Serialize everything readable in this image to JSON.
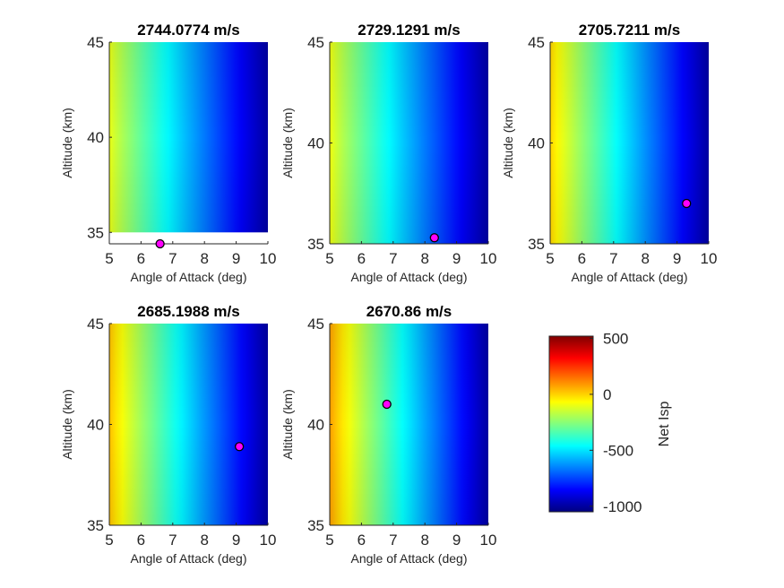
{
  "colorbar": {
    "label": "Net Isp",
    "ticks": [
      500,
      0,
      -500,
      -1000
    ],
    "range": [
      -1050,
      520
    ]
  },
  "chart_data": [
    {
      "type": "heatmap",
      "title": "2744.0774 m/s",
      "xlabel": "Angle of Attack (deg)",
      "ylabel": "Altitude (km)",
      "xlim": [
        5,
        10
      ],
      "ylim": [
        34.4,
        45
      ],
      "xticks": [
        5,
        6,
        7,
        8,
        9,
        10
      ],
      "yticks": [
        35,
        40,
        45
      ],
      "field_ylim": [
        35,
        45
      ],
      "field": {
        "v_left": -100,
        "v_right": -1000,
        "curvature": 0.28
      },
      "marker": {
        "x": 6.6,
        "y": 34.4
      }
    },
    {
      "type": "heatmap",
      "title": "2729.1291 m/s",
      "xlabel": "Angle of Attack (deg)",
      "ylabel": "Altitude (km)",
      "xlim": [
        5,
        10
      ],
      "ylim": [
        35,
        45
      ],
      "xticks": [
        5,
        6,
        7,
        8,
        9,
        10
      ],
      "yticks": [
        35,
        40,
        45
      ],
      "field_ylim": [
        35,
        45
      ],
      "field": {
        "v_left": -90,
        "v_right": -1000,
        "curvature": 0.28
      },
      "marker": {
        "x": 8.3,
        "y": 35.3
      }
    },
    {
      "type": "heatmap",
      "title": "2705.7211 m/s",
      "xlabel": "Angle of Attack (deg)",
      "ylabel": "Altitude (km)",
      "xlim": [
        5,
        10
      ],
      "ylim": [
        35,
        45
      ],
      "xticks": [
        5,
        6,
        7,
        8,
        9,
        10
      ],
      "yticks": [
        35,
        40,
        45
      ],
      "field_ylim": [
        35,
        45
      ],
      "field": {
        "v_left": 0,
        "v_right": -1000,
        "curvature": 0.28
      },
      "marker": {
        "x": 9.3,
        "y": 37.0
      }
    },
    {
      "type": "heatmap",
      "title": "2685.1988 m/s",
      "xlabel": "Angle of Attack (deg)",
      "ylabel": "Altitude (km)",
      "xlim": [
        5,
        10
      ],
      "ylim": [
        35,
        45
      ],
      "xticks": [
        5,
        6,
        7,
        8,
        9,
        10
      ],
      "yticks": [
        35,
        40,
        45
      ],
      "field_ylim": [
        35,
        45
      ],
      "field": {
        "v_left": 30,
        "v_right": -1000,
        "curvature": 0.28
      },
      "marker": {
        "x": 9.1,
        "y": 38.9
      }
    },
    {
      "type": "heatmap",
      "title": "2670.86 m/s",
      "xlabel": "Angle of Attack (deg)",
      "ylabel": "Altitude (km)",
      "xlim": [
        5,
        10
      ],
      "ylim": [
        35,
        45
      ],
      "xticks": [
        5,
        6,
        7,
        8,
        9,
        10
      ],
      "yticks": [
        35,
        40,
        45
      ],
      "field_ylim": [
        35,
        45
      ],
      "field": {
        "v_left": 80,
        "v_right": -1000,
        "curvature": 0.28
      },
      "marker": {
        "x": 6.8,
        "y": 41.0
      }
    }
  ]
}
